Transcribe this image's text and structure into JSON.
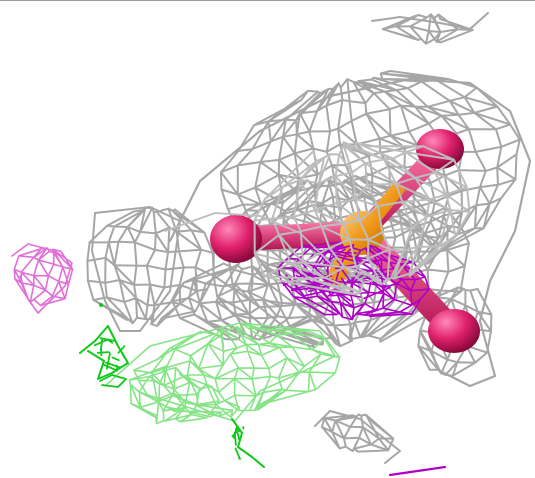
{
  "viewer": {
    "background": "#ffffff",
    "frame_line": "#9a9a9a",
    "mesh_colors": {
      "gray_density": "#9e9e9e",
      "green_density": "#7be07b",
      "bright_green_density": "#10c81a",
      "violet_density": "#b000c8",
      "pink_density": "#e070d8"
    },
    "ligand_colors": {
      "oxygen": "#e0206c",
      "phosphorus": "#f09818"
    }
  }
}
